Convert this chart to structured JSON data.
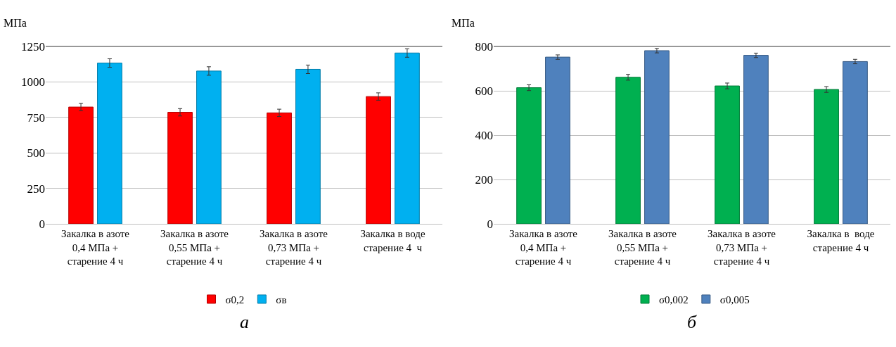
{
  "chart_data": [
    {
      "type": "bar",
      "ylabel": "МПа",
      "categories": [
        "Закалка в азоте\n0,4 МПа +\nстарение 4 ч",
        "Закалка в азоте\n0,55 МПа +\nстарение 4 ч",
        "Закалка в азоте\n0,73 МПа +\nстарение 4 ч",
        "Закалка в воде\nстарение 4  ч"
      ],
      "series": [
        {
          "name": "σ0,2",
          "color": "#ff0000",
          "values": [
            823,
            786,
            782,
            897
          ],
          "errors": [
            26,
            26,
            26,
            26
          ]
        },
        {
          "name": "σв",
          "color": "#00b0f0",
          "values": [
            1133,
            1077,
            1089,
            1204
          ],
          "errors": [
            30,
            30,
            30,
            30
          ]
        }
      ],
      "ylim": [
        0,
        1250
      ],
      "yticks": [
        0,
        250,
        500,
        750,
        1000,
        1250
      ],
      "grid": "y",
      "legend": "bottom",
      "annotations": [
        "а"
      ]
    },
    {
      "type": "bar",
      "ylabel": "МПа",
      "categories": [
        "Закалка в азоте\n0,4 МПа +\nстарение 4 ч",
        "Закалка в азоте\n0,55 МПа +\nстарение 4 ч",
        "Закалка в азоте\n0,73 МПа +\nстарение 4 ч",
        "Закалка в  воде\nстарение 4 ч"
      ],
      "series": [
        {
          "name": "σ0,002",
          "color": "#00b050",
          "values": [
            614,
            661,
            622,
            606
          ],
          "errors": [
            13,
            13,
            13,
            13
          ]
        },
        {
          "name": "σ0,005",
          "color": "#4f81bd",
          "values": [
            752,
            781,
            760,
            732
          ],
          "errors": [
            10,
            10,
            10,
            10
          ]
        }
      ],
      "ylim": [
        0,
        800
      ],
      "yticks": [
        0,
        200,
        400,
        600,
        800
      ],
      "grid": "y",
      "legend": "bottom",
      "annotations": [
        "б"
      ]
    }
  ]
}
